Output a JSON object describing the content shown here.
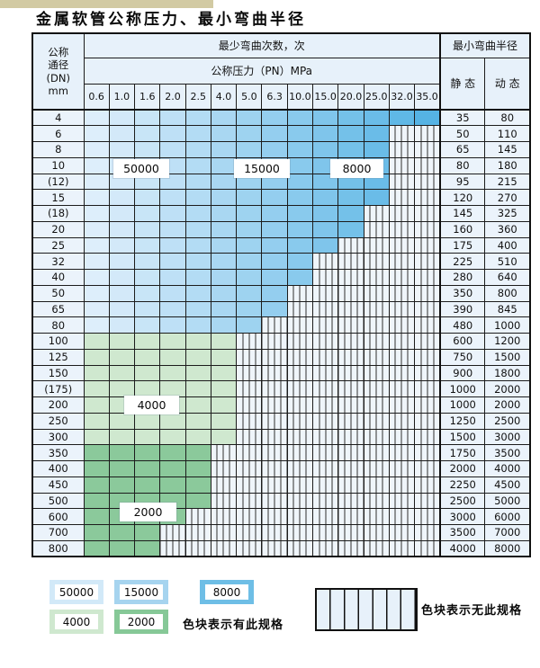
{
  "page": {
    "title": "金属软管公称压力、最小弯曲半径"
  },
  "table": {
    "header": {
      "dn_lines": [
        "公称",
        "通径",
        "(DN)",
        "mm"
      ],
      "bend_cycles_label": "最少弯曲次数，次",
      "pressure_label": "公称压力（PN）MPa",
      "radius_label": "最小弯曲半径",
      "static_label": "静 态",
      "dynamic_label": "动 态",
      "pressure_columns": [
        "0.6",
        "1.0",
        "1.6",
        "2.0",
        "2.5",
        "4.0",
        "5.0",
        "6.3",
        "10.0",
        "15.0",
        "20.0",
        "25.0",
        "32.0",
        "35.0"
      ]
    },
    "rows": [
      {
        "dn": "4",
        "colored_columns": 14,
        "zone": "blue",
        "static": "35",
        "dynamic": "80"
      },
      {
        "dn": "6",
        "colored_columns": 12,
        "zone": "blue",
        "static": "50",
        "dynamic": "110"
      },
      {
        "dn": "8",
        "colored_columns": 12,
        "zone": "blue",
        "static": "65",
        "dynamic": "145"
      },
      {
        "dn": "10",
        "colored_columns": 12,
        "zone": "blue",
        "static": "80",
        "dynamic": "180"
      },
      {
        "dn": "(12)",
        "colored_columns": 12,
        "zone": "blue",
        "static": "95",
        "dynamic": "215"
      },
      {
        "dn": "15",
        "colored_columns": 12,
        "zone": "blue",
        "static": "120",
        "dynamic": "270"
      },
      {
        "dn": "(18)",
        "colored_columns": 11,
        "zone": "blue",
        "static": "145",
        "dynamic": "325"
      },
      {
        "dn": "20",
        "colored_columns": 11,
        "zone": "blue",
        "static": "160",
        "dynamic": "360"
      },
      {
        "dn": "25",
        "colored_columns": 10,
        "zone": "blue",
        "static": "175",
        "dynamic": "400"
      },
      {
        "dn": "32",
        "colored_columns": 9,
        "zone": "blue",
        "static": "225",
        "dynamic": "510"
      },
      {
        "dn": "40",
        "colored_columns": 9,
        "zone": "blue",
        "static": "280",
        "dynamic": "640"
      },
      {
        "dn": "50",
        "colored_columns": 8,
        "zone": "blue",
        "static": "350",
        "dynamic": "800"
      },
      {
        "dn": "65",
        "colored_columns": 8,
        "zone": "blue",
        "static": "390",
        "dynamic": "845"
      },
      {
        "dn": "80",
        "colored_columns": 7,
        "zone": "blue",
        "static": "480",
        "dynamic": "1000"
      },
      {
        "dn": "100",
        "colored_columns": 6,
        "zone": "green-4000",
        "static": "600",
        "dynamic": "1200"
      },
      {
        "dn": "125",
        "colored_columns": 6,
        "zone": "green-4000",
        "static": "750",
        "dynamic": "1500"
      },
      {
        "dn": "150",
        "colored_columns": 6,
        "zone": "green-4000",
        "static": "900",
        "dynamic": "1800"
      },
      {
        "dn": "(175)",
        "colored_columns": 6,
        "zone": "green-4000",
        "static": "1000",
        "dynamic": "2000"
      },
      {
        "dn": "200",
        "colored_columns": 6,
        "zone": "green-4000",
        "static": "1000",
        "dynamic": "2000"
      },
      {
        "dn": "250",
        "colored_columns": 6,
        "zone": "green-4000",
        "static": "1250",
        "dynamic": "2500"
      },
      {
        "dn": "300",
        "colored_columns": 6,
        "zone": "green-4000",
        "static": "1500",
        "dynamic": "3000"
      },
      {
        "dn": "350",
        "colored_columns": 5,
        "zone": "green-2000",
        "static": "1750",
        "dynamic": "3500"
      },
      {
        "dn": "400",
        "colored_columns": 5,
        "zone": "green-2000",
        "static": "2000",
        "dynamic": "4000"
      },
      {
        "dn": "450",
        "colored_columns": 5,
        "zone": "green-2000",
        "static": "2250",
        "dynamic": "4500"
      },
      {
        "dn": "500",
        "colored_columns": 5,
        "zone": "green-2000",
        "static": "2500",
        "dynamic": "5000"
      },
      {
        "dn": "600",
        "colored_columns": 4,
        "zone": "green-2000",
        "static": "3000",
        "dynamic": "6000"
      },
      {
        "dn": "700",
        "colored_columns": 3,
        "zone": "green-2000",
        "static": "3500",
        "dynamic": "7000"
      },
      {
        "dn": "800",
        "colored_columns": 3,
        "zone": "green-2000",
        "static": "4000",
        "dynamic": "8000"
      }
    ]
  },
  "overlays": {
    "b50000": "50000",
    "b15000": "15000",
    "b8000": "8000",
    "g4000": "4000",
    "g2000": "2000"
  },
  "legend": {
    "items": [
      {
        "value": "50000",
        "color": "#d2e9f8"
      },
      {
        "value": "15000",
        "color": "#a6d4ef"
      },
      {
        "value": "8000",
        "color": "#6ebee6"
      },
      {
        "value": "4000",
        "color": "#cfe8cf"
      },
      {
        "value": "2000",
        "color": "#86c897"
      }
    ],
    "has_spec_text": "色块表示有此规格",
    "no_spec_text": "色块表示无此规格"
  },
  "colors": {
    "blue_light": "#ddeefb",
    "blue_dark": "#55b3e4",
    "green_4000": "#cfe8cf",
    "green_2000": "#8bc99b",
    "hatch_bg": "#eff5fa",
    "hatch_line": "#2f2f2f"
  }
}
